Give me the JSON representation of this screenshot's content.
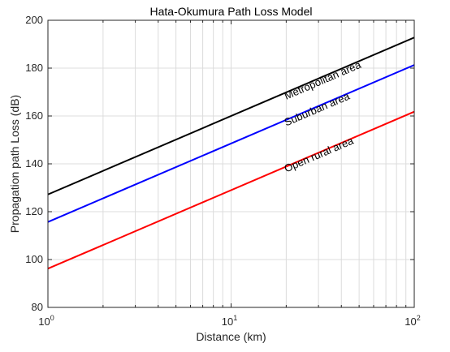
{
  "chart_data": {
    "type": "line",
    "title": "Hata-Okumura Path Loss Model",
    "xlabel": "Distance (km)",
    "ylabel": "Propagation path Loss (dB)",
    "xscale": "log",
    "xlim": [
      1,
      100
    ],
    "ylim": [
      80,
      200
    ],
    "grid": true,
    "x_ticks": [
      {
        "base": "10",
        "exp": "0"
      },
      {
        "base": "10",
        "exp": "1"
      },
      {
        "base": "10",
        "exp": "2"
      }
    ],
    "y_ticks": [
      80,
      100,
      120,
      140,
      160,
      180,
      200
    ],
    "series": [
      {
        "name": "Metropolitan area",
        "color": "#000000",
        "x": [
          1,
          100
        ],
        "y": [
          127.2,
          192.8
        ]
      },
      {
        "name": "Suburban area",
        "color": "#0000ff",
        "x": [
          1,
          100
        ],
        "y": [
          115.7,
          181.3
        ]
      },
      {
        "name": "Open rural area",
        "color": "#ff0000",
        "x": [
          1,
          100
        ],
        "y": [
          96.2,
          161.8
        ]
      }
    ],
    "annotations": [
      {
        "text": "Metropolitan area",
        "x": 20,
        "y": 166.8
      },
      {
        "text": "Suburban area",
        "x": 20,
        "y": 155.7
      },
      {
        "text": "Open rural area",
        "x": 20,
        "y": 136.4
      }
    ]
  }
}
